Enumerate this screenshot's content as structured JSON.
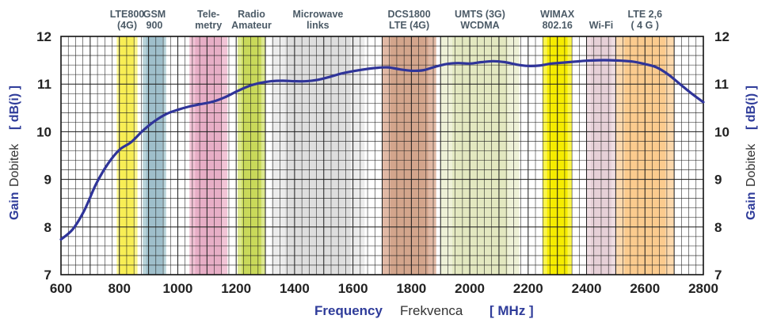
{
  "chart_data": {
    "type": "line",
    "xlabel_parts": [
      "Frequency",
      "Frekvenca",
      "[ MHz ]"
    ],
    "ylabel_parts": [
      "Gain",
      "Dobitek",
      "[ dB(i) ]"
    ],
    "xlim": [
      600,
      2800
    ],
    "ylim": [
      7,
      12
    ],
    "x_ticks": [
      "600",
      "800",
      "1000",
      "1200",
      "1400",
      "1600",
      "1800",
      "2000",
      "2200",
      "2400",
      "2600",
      "2800"
    ],
    "y_ticks": [
      "7",
      "8",
      "9",
      "10",
      "11",
      "12"
    ],
    "grid": true,
    "line_color": "#2f3499",
    "bands": [
      {
        "label": [
          "LTE800",
          "(4G)"
        ],
        "start": 791,
        "end": 862,
        "color": "#fbf58a",
        "core": "#f8ee55"
      },
      {
        "label": [
          "GSM",
          "900"
        ],
        "start": 880,
        "end": 960,
        "color": "#b8d3d9",
        "core": "#9fbfcb"
      },
      {
        "label": [
          "Tele-",
          "metry"
        ],
        "start": 1040,
        "end": 1170,
        "color": "#f2c4d6",
        "core": "#e7aec6"
      },
      {
        "label": [
          "Radio",
          "Amateur"
        ],
        "start": 1205,
        "end": 1300,
        "color": "#dde98e",
        "core": "#c9d95a"
      },
      {
        "label": [
          "Microwave",
          "links"
        ],
        "start": 1320,
        "end": 1640,
        "color": "#ececec",
        "core": "#dedede"
      },
      {
        "label": [
          "DCS1800",
          "LTE (4G)"
        ],
        "start": 1700,
        "end": 1885,
        "color": "#e1b9a5",
        "core": "#d3a58c"
      },
      {
        "label": [
          "UMTS (3G)",
          "WCDMA"
        ],
        "start": 1900,
        "end": 2170,
        "color": "#eef1d7",
        "core": "#e3e8c0"
      },
      {
        "label": [
          "WIMAX",
          "802.16"
        ],
        "start": 2250,
        "end": 2350,
        "color": "#fbf54b",
        "core": "#f6ec00"
      },
      {
        "label": [
          "Wi-Fi"
        ],
        "start": 2400,
        "end": 2500,
        "color": "#efdde2",
        "core": "#e6d0d7"
      },
      {
        "label": [
          "LTE 2,6",
          "( 4 G )"
        ],
        "start": 2500,
        "end": 2700,
        "color": "#fdd9ad",
        "core": "#fbcb8e"
      }
    ],
    "series": [
      {
        "x": [
          600,
          640,
          680,
          720,
          760,
          800,
          840,
          880,
          920,
          960,
          1000,
          1040,
          1080,
          1120,
          1160,
          1200,
          1240,
          1280,
          1320,
          1360,
          1400,
          1440,
          1480,
          1520,
          1560,
          1600,
          1640,
          1680,
          1720,
          1760,
          1800,
          1840,
          1880,
          1920,
          1960,
          2000,
          2040,
          2080,
          2120,
          2160,
          2200,
          2240,
          2280,
          2320,
          2360,
          2400,
          2440,
          2480,
          2520,
          2560,
          2600,
          2640,
          2680,
          2720,
          2760,
          2800
        ],
        "y": [
          7.74,
          7.95,
          8.35,
          8.9,
          9.32,
          9.62,
          9.78,
          10.02,
          10.22,
          10.37,
          10.46,
          10.53,
          10.58,
          10.63,
          10.72,
          10.84,
          10.95,
          11.02,
          11.06,
          11.07,
          11.06,
          11.06,
          11.09,
          11.15,
          11.22,
          11.27,
          11.31,
          11.34,
          11.35,
          11.31,
          11.28,
          11.29,
          11.36,
          11.42,
          11.44,
          11.43,
          11.46,
          11.48,
          11.46,
          11.41,
          11.38,
          11.39,
          11.43,
          11.45,
          11.47,
          11.49,
          11.5,
          11.5,
          11.49,
          11.47,
          11.42,
          11.35,
          11.2,
          11.0,
          10.8,
          10.62
        ]
      }
    ]
  }
}
